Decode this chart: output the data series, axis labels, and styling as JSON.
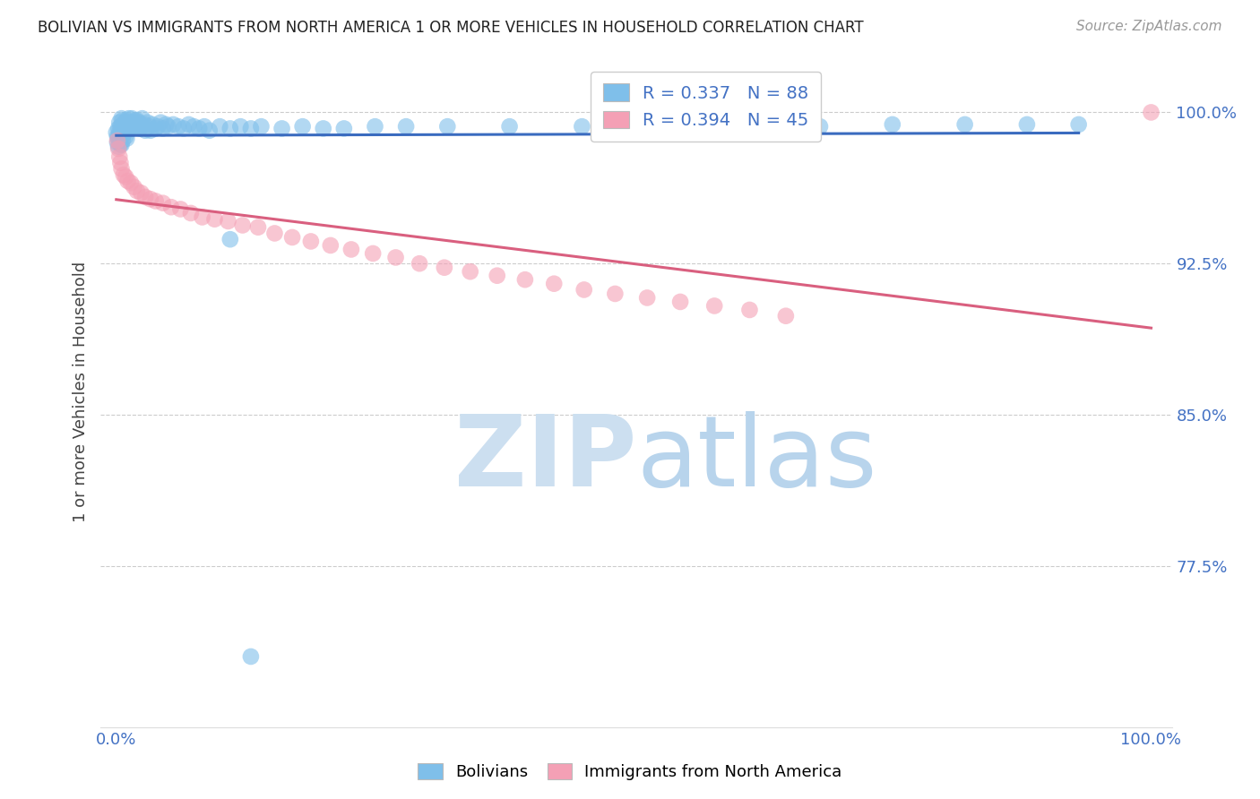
{
  "title": "BOLIVIAN VS IMMIGRANTS FROM NORTH AMERICA 1 OR MORE VEHICLES IN HOUSEHOLD CORRELATION CHART",
  "source": "Source: ZipAtlas.com",
  "ylabel": "1 or more Vehicles in Household",
  "blue_R": 0.337,
  "blue_N": 88,
  "pink_R": 0.394,
  "pink_N": 45,
  "blue_color": "#7fbfea",
  "pink_color": "#f4a0b5",
  "blue_line_color": "#3a6bbf",
  "pink_line_color": "#d95f7f",
  "watermark_zip_color": "#c8ddf0",
  "watermark_atlas_color": "#b0cce8",
  "background_color": "#ffffff",
  "grid_color": "#cccccc",
  "yticks": [
    0.775,
    0.85,
    0.925,
    1.0
  ],
  "ytick_labels": [
    "77.5%",
    "85.0%",
    "92.5%",
    "100.0%"
  ],
  "blue_x": [
    0.0,
    0.001,
    0.001,
    0.002,
    0.002,
    0.002,
    0.003,
    0.003,
    0.003,
    0.004,
    0.004,
    0.004,
    0.005,
    0.005,
    0.005,
    0.005,
    0.006,
    0.006,
    0.006,
    0.007,
    0.007,
    0.008,
    0.008,
    0.009,
    0.009,
    0.01,
    0.01,
    0.01,
    0.011,
    0.012,
    0.012,
    0.013,
    0.014,
    0.015,
    0.015,
    0.016,
    0.017,
    0.018,
    0.019,
    0.02,
    0.021,
    0.022,
    0.023,
    0.025,
    0.025,
    0.027,
    0.028,
    0.03,
    0.032,
    0.033,
    0.035,
    0.038,
    0.04,
    0.043,
    0.045,
    0.048,
    0.05,
    0.055,
    0.06,
    0.065,
    0.07,
    0.075,
    0.08,
    0.085,
    0.09,
    0.1,
    0.11,
    0.12,
    0.13,
    0.14,
    0.16,
    0.18,
    0.2,
    0.22,
    0.25,
    0.28,
    0.32,
    0.38,
    0.45,
    0.52,
    0.6,
    0.68,
    0.75,
    0.82,
    0.88,
    0.93,
    0.11,
    0.13
  ],
  "blue_y": [
    0.99,
    0.988,
    0.985,
    0.992,
    0.988,
    0.983,
    0.995,
    0.99,
    0.985,
    0.993,
    0.989,
    0.984,
    0.997,
    0.993,
    0.989,
    0.984,
    0.996,
    0.991,
    0.986,
    0.994,
    0.989,
    0.995,
    0.99,
    0.993,
    0.988,
    0.996,
    0.992,
    0.987,
    0.994,
    0.997,
    0.992,
    0.995,
    0.993,
    0.997,
    0.992,
    0.995,
    0.993,
    0.996,
    0.994,
    0.996,
    0.993,
    0.995,
    0.992,
    0.997,
    0.993,
    0.994,
    0.991,
    0.995,
    0.993,
    0.991,
    0.994,
    0.992,
    0.993,
    0.995,
    0.992,
    0.994,
    0.993,
    0.994,
    0.993,
    0.992,
    0.994,
    0.993,
    0.992,
    0.993,
    0.991,
    0.993,
    0.992,
    0.993,
    0.992,
    0.993,
    0.992,
    0.993,
    0.992,
    0.992,
    0.993,
    0.993,
    0.993,
    0.993,
    0.993,
    0.993,
    0.993,
    0.993,
    0.994,
    0.994,
    0.994,
    0.994,
    0.937,
    0.73
  ],
  "pink_x": [
    0.001,
    0.002,
    0.003,
    0.004,
    0.005,
    0.007,
    0.009,
    0.011,
    0.014,
    0.017,
    0.02,
    0.024,
    0.028,
    0.033,
    0.038,
    0.045,
    0.053,
    0.062,
    0.072,
    0.083,
    0.095,
    0.108,
    0.122,
    0.137,
    0.153,
    0.17,
    0.188,
    0.207,
    0.227,
    0.248,
    0.27,
    0.293,
    0.317,
    0.342,
    0.368,
    0.395,
    0.423,
    0.452,
    0.482,
    0.513,
    0.545,
    0.578,
    0.612,
    0.647,
    1.0
  ],
  "pink_y": [
    0.986,
    0.982,
    0.978,
    0.975,
    0.972,
    0.969,
    0.968,
    0.966,
    0.965,
    0.963,
    0.961,
    0.96,
    0.958,
    0.957,
    0.956,
    0.955,
    0.953,
    0.952,
    0.95,
    0.948,
    0.947,
    0.946,
    0.944,
    0.943,
    0.94,
    0.938,
    0.936,
    0.934,
    0.932,
    0.93,
    0.928,
    0.925,
    0.923,
    0.921,
    0.919,
    0.917,
    0.915,
    0.912,
    0.91,
    0.908,
    0.906,
    0.904,
    0.902,
    0.899,
    1.0
  ]
}
